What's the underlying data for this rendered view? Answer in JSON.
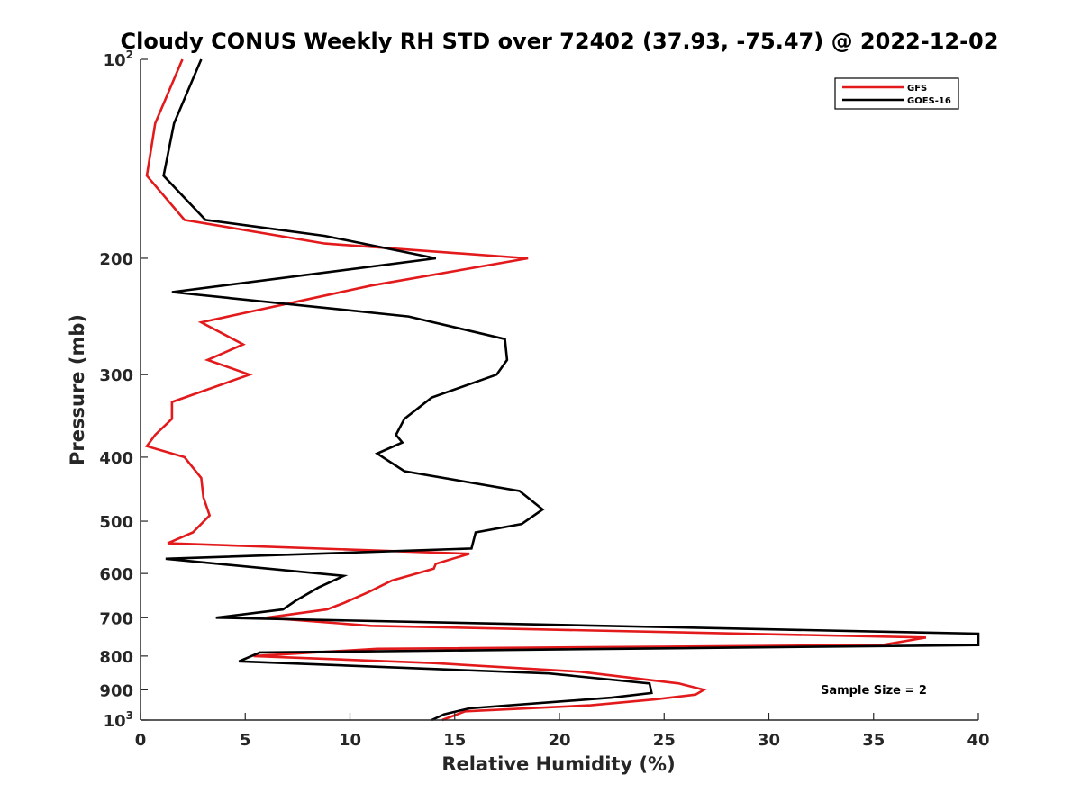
{
  "chart_data": {
    "type": "line",
    "title": "Cloudy CONUS Weekly RH STD over 72402 (37.93, -75.47) @ 2022-12-02",
    "xlabel": "Relative Humidity (%)",
    "ylabel": "Pressure (mb)",
    "xlim": [
      0,
      40
    ],
    "ylim": [
      100,
      1000
    ],
    "y_scale": "log",
    "y_reversed": true,
    "x_ticks": [
      0,
      5,
      10,
      15,
      20,
      25,
      30,
      35,
      40
    ],
    "x_tick_labels": [
      "0",
      "5",
      "10",
      "15",
      "20",
      "25",
      "30",
      "35",
      "40"
    ],
    "y_ticks": [
      100,
      200,
      300,
      400,
      500,
      600,
      700,
      800,
      900,
      1000
    ],
    "y_tick_labels": [
      {
        "base": "10",
        "exp": "2"
      },
      {
        "base": "200"
      },
      {
        "base": "300"
      },
      {
        "base": "400"
      },
      {
        "base": "500"
      },
      {
        "base": "600"
      },
      {
        "base": "700"
      },
      {
        "base": "800"
      },
      {
        "base": "900"
      },
      {
        "base": "10",
        "exp": "3"
      }
    ],
    "grid": false,
    "legend_position": "top-right",
    "annotation": "Sample Size = 2",
    "series": [
      {
        "name": "GFS",
        "color": "#e31a1c",
        "points": [
          [
            2.0,
            100
          ],
          [
            0.7,
            125
          ],
          [
            0.3,
            150
          ],
          [
            2.1,
            175
          ],
          [
            8.8,
            190
          ],
          [
            18.5,
            200
          ],
          [
            11.0,
            220
          ],
          [
            2.9,
            250
          ],
          [
            4.9,
            270
          ],
          [
            3.2,
            285
          ],
          [
            5.2,
            300
          ],
          [
            1.5,
            330
          ],
          [
            1.5,
            350
          ],
          [
            0.7,
            370
          ],
          [
            0.3,
            385
          ],
          [
            2.1,
            400
          ],
          [
            2.9,
            430
          ],
          [
            3.0,
            460
          ],
          [
            3.3,
            490
          ],
          [
            2.5,
            520
          ],
          [
            1.3,
            540
          ],
          [
            15.7,
            560
          ],
          [
            14.1,
            580
          ],
          [
            14.0,
            590
          ],
          [
            12.0,
            615
          ],
          [
            10.9,
            640
          ],
          [
            9.7,
            665
          ],
          [
            8.9,
            680
          ],
          [
            6.0,
            700
          ],
          [
            11.0,
            720
          ],
          [
            37.5,
            750
          ],
          [
            35.4,
            770
          ],
          [
            11.3,
            780
          ],
          [
            5.4,
            800
          ],
          [
            14.0,
            820
          ],
          [
            21.0,
            845
          ],
          [
            25.7,
            880
          ],
          [
            26.9,
            900
          ],
          [
            26.5,
            915
          ],
          [
            24.6,
            930
          ],
          [
            21.5,
            950
          ],
          [
            15.5,
            970
          ],
          [
            14.4,
            1000
          ]
        ]
      },
      {
        "name": "GOES-16",
        "color": "#000000",
        "points": [
          [
            2.9,
            100
          ],
          [
            1.6,
            125
          ],
          [
            1.1,
            150
          ],
          [
            3.1,
            175
          ],
          [
            8.8,
            185
          ],
          [
            14.1,
            200
          ],
          [
            1.5,
            225
          ],
          [
            12.8,
            245
          ],
          [
            17.4,
            265
          ],
          [
            17.5,
            285
          ],
          [
            17.0,
            300
          ],
          [
            13.9,
            325
          ],
          [
            12.6,
            350
          ],
          [
            12.2,
            370
          ],
          [
            12.5,
            380
          ],
          [
            11.3,
            395
          ],
          [
            12.6,
            420
          ],
          [
            18.1,
            450
          ],
          [
            19.2,
            480
          ],
          [
            18.2,
            505
          ],
          [
            16.0,
            520
          ],
          [
            15.8,
            550
          ],
          [
            1.2,
            570
          ],
          [
            9.7,
            605
          ],
          [
            8.5,
            630
          ],
          [
            7.4,
            660
          ],
          [
            6.8,
            680
          ],
          [
            3.6,
            700
          ],
          [
            40.0,
            740
          ],
          [
            40.0,
            770
          ],
          [
            5.7,
            790
          ],
          [
            4.7,
            815
          ],
          [
            19.5,
            850
          ],
          [
            24.3,
            880
          ],
          [
            24.4,
            910
          ],
          [
            22.5,
            925
          ],
          [
            15.7,
            960
          ],
          [
            14.5,
            980
          ],
          [
            13.9,
            1000
          ]
        ]
      }
    ]
  }
}
